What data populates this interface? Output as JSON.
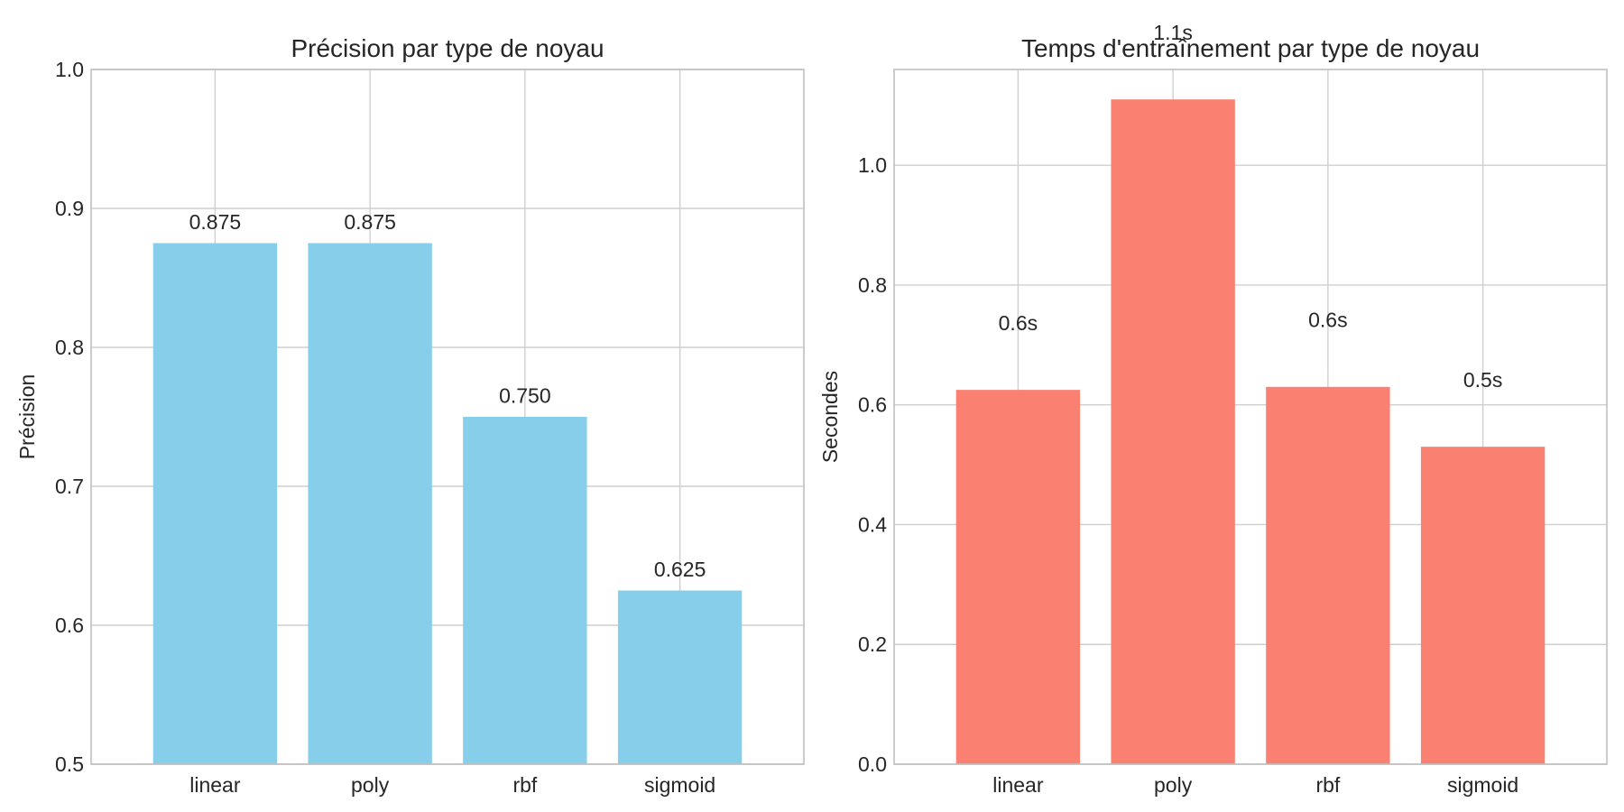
{
  "chart_data": [
    {
      "type": "bar",
      "title": "Précision par type de noyau",
      "xlabel": "",
      "ylabel": "Précision",
      "categories": [
        "linear",
        "poly",
        "rbf",
        "sigmoid"
      ],
      "values": [
        0.875,
        0.875,
        0.75,
        0.625
      ],
      "value_labels": [
        "0.875",
        "0.875",
        "0.750",
        "0.625"
      ],
      "ylim": [
        0.5,
        1.0
      ],
      "yticks": [
        0.5,
        0.6,
        0.7,
        0.8,
        0.9,
        1.0
      ],
      "ytick_labels": [
        "0.5",
        "0.6",
        "0.7",
        "0.8",
        "0.9",
        "1.0"
      ],
      "color": "#87ceeb",
      "grid": true,
      "label_offset": 0.01
    },
    {
      "type": "bar",
      "title": "Temps d'entraînement par type de noyau",
      "xlabel": "",
      "ylabel": "Secondes",
      "categories": [
        "linear",
        "poly",
        "rbf",
        "sigmoid"
      ],
      "values": [
        0.625,
        1.11,
        0.63,
        0.53
      ],
      "value_labels": [
        "0.6s",
        "1.1s",
        "0.6s",
        "0.5s"
      ],
      "ylim": [
        0,
        1.16
      ],
      "yticks": [
        0.0,
        0.2,
        0.4,
        0.6,
        0.8,
        1.0
      ],
      "ytick_labels": [
        "0.0",
        "0.2",
        "0.4",
        "0.6",
        "0.8",
        "1.0"
      ],
      "color": "#fa8072",
      "grid": true,
      "label_offset": 0.1
    }
  ]
}
